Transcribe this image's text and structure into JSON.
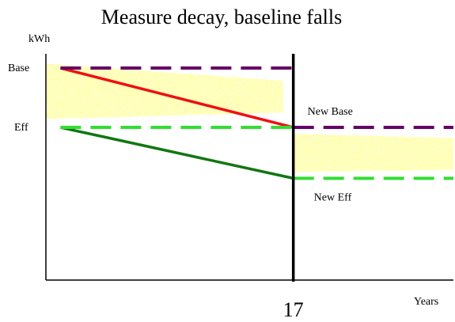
{
  "chart_data": {
    "type": "line",
    "title": "Measure decay, baseline falls",
    "ylabel": "kWh",
    "xlabel": "Years",
    "divider_label": "17",
    "xlim": [
      0,
      28
    ],
    "ylim": [
      0,
      100
    ],
    "y_ticks": [
      {
        "label": "Base",
        "value": 100
      },
      {
        "label": "Eff",
        "value": 72
      }
    ],
    "divider_x": 17,
    "series": [
      {
        "name": "Base",
        "type": "dashed",
        "color": "#660066",
        "x": [
          1,
          17
        ],
        "y": [
          100,
          100
        ]
      },
      {
        "name": "Eff",
        "type": "dashed",
        "color": "#33dd33",
        "x": [
          1,
          17
        ],
        "y": [
          72,
          72
        ]
      },
      {
        "name": "",
        "type": "solid",
        "color": "#ee1111",
        "x": [
          1,
          17
        ],
        "y": [
          100,
          72
        ]
      },
      {
        "name": "",
        "type": "solid",
        "color": "#117711",
        "x": [
          1,
          17
        ],
        "y": [
          72,
          48
        ]
      },
      {
        "name": "New Base",
        "type": "dashed",
        "color": "#660066",
        "x": [
          17,
          28
        ],
        "y": [
          72,
          72
        ]
      },
      {
        "name": "New Eff",
        "type": "dashed",
        "color": "#33dd33",
        "x": [
          17,
          28
        ],
        "y": [
          48,
          48
        ]
      }
    ],
    "bands": [
      {
        "color": "#ffff66",
        "x": [
          0,
          16.3
        ],
        "y_top_start": 102,
        "y_top_end": 94,
        "y_bot_start": 76,
        "y_bot_end": 79
      },
      {
        "color": "#ffff66",
        "x": [
          17,
          28
        ],
        "y_top_start": 69,
        "y_top_end": 67,
        "y_bot_start": 51,
        "y_bot_end": 52
      }
    ],
    "series_labels": [
      {
        "text": "New Base",
        "series_index": 4
      },
      {
        "text": "New Eff",
        "series_index": 5
      }
    ]
  }
}
